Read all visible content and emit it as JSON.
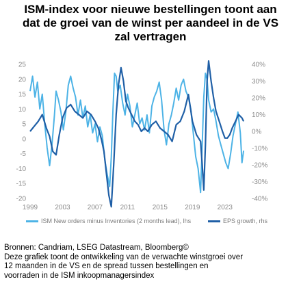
{
  "title_lines": [
    "ISM-index voor nieuwe bestellingen toont aan",
    "dat de groei van de winst per aandeel in de VS",
    "zal vertragen"
  ],
  "chart_data": {
    "type": "line",
    "x_tick_labels": [
      "1999",
      "2003",
      "2007",
      "2011",
      "2015",
      "2019",
      "2023"
    ],
    "xlim": [
      1999,
      2025.8
    ],
    "y_left": {
      "ticks": [
        25,
        20,
        15,
        10,
        5,
        0,
        -5,
        -10,
        -15,
        -20
      ],
      "tick_labels": [
        "25",
        "20",
        "15",
        "10",
        "5",
        "0",
        "-5",
        "-10",
        "-15",
        "-20"
      ],
      "ylim": [
        -20,
        25
      ]
    },
    "y_right": {
      "ticks": [
        40,
        30,
        20,
        10,
        0,
        -10,
        -20,
        -30,
        -40
      ],
      "tick_labels": [
        "40%",
        "30%",
        "20%",
        "10%",
        "0%",
        "-10%",
        "-20%",
        "-30%",
        "-40%"
      ],
      "ylim": [
        -40,
        40
      ]
    },
    "grid": false,
    "legend_position": "bottom",
    "series": [
      {
        "name": "ISM New orders minus Inventories (2 months lead), lhs",
        "axis": "left",
        "color": "#4db3e6",
        "x": [
          1999.0,
          1999.3,
          1999.6,
          1999.9,
          2000.2,
          2000.5,
          2000.8,
          2001.1,
          2001.4,
          2001.7,
          2002.0,
          2002.2,
          2002.5,
          2002.8,
          2003.1,
          2003.4,
          2003.7,
          2004.0,
          2004.3,
          2004.6,
          2004.9,
          2005.2,
          2005.5,
          2005.8,
          2006.1,
          2006.4,
          2006.7,
          2007.0,
          2007.3,
          2007.6,
          2007.9,
          2008.2,
          2008.5,
          2008.8,
          2009.0,
          2009.2,
          2009.4,
          2009.6,
          2009.8,
          2010.1,
          2010.4,
          2010.7,
          2011.0,
          2011.3,
          2011.6,
          2011.9,
          2012.2,
          2012.5,
          2012.8,
          2013.1,
          2013.4,
          2013.7,
          2014.0,
          2014.3,
          2014.6,
          2014.9,
          2015.2,
          2015.5,
          2015.8,
          2016.1,
          2016.4,
          2016.7,
          2017.0,
          2017.3,
          2017.6,
          2017.9,
          2018.2,
          2018.5,
          2018.8,
          2019.1,
          2019.4,
          2019.7,
          2020.0,
          2020.2,
          2020.4,
          2020.6,
          2020.8,
          2021.0,
          2021.3,
          2021.6,
          2021.9,
          2022.2,
          2022.5,
          2022.8,
          2023.1,
          2023.4,
          2023.7,
          2024.0,
          2024.3,
          2024.6,
          2024.9,
          2025.1,
          2025.3
        ],
        "y": [
          16,
          21,
          14,
          19,
          10,
          15,
          5,
          -3,
          -9,
          -2,
          8,
          16,
          13,
          9,
          3,
          9,
          18,
          21,
          17,
          14,
          8,
          13,
          7,
          11,
          4,
          8,
          2,
          5,
          -1,
          4,
          1,
          -7,
          -12,
          -16,
          -6,
          9,
          22,
          21,
          16,
          18,
          12,
          8,
          15,
          11,
          4,
          8,
          12,
          5,
          7,
          3,
          8,
          2,
          11,
          14,
          16,
          19,
          13,
          3,
          -2,
          5,
          8,
          12,
          17,
          13,
          18,
          20,
          16,
          14,
          10,
          2,
          -6,
          -10,
          -18,
          -2,
          14,
          22,
          20,
          13,
          9,
          10,
          6,
          1,
          -2,
          -5,
          -8,
          -10,
          -5,
          1,
          5,
          9,
          2,
          -8,
          -4
        ]
      },
      {
        "name": "EPS growth, rhs",
        "axis": "right",
        "color": "#1f5fa6",
        "x": [
          1999.0,
          1999.5,
          2000.0,
          2000.5,
          2001.0,
          2001.4,
          2001.8,
          2002.2,
          2002.6,
          2003.0,
          2003.5,
          2004.0,
          2004.5,
          2005.0,
          2005.5,
          2006.0,
          2006.5,
          2007.0,
          2007.4,
          2007.8,
          2008.1,
          2008.4,
          2008.7,
          2009.0,
          2009.3,
          2009.6,
          2009.9,
          2010.2,
          2010.5,
          2010.8,
          2011.1,
          2011.5,
          2011.9,
          2012.3,
          2012.7,
          2013.1,
          2013.5,
          2014.0,
          2014.5,
          2015.0,
          2015.5,
          2016.0,
          2016.5,
          2017.0,
          2017.5,
          2018.0,
          2018.5,
          2019.0,
          2019.5,
          2020.0,
          2020.2,
          2020.4,
          2020.6,
          2020.8,
          2021.0,
          2021.3,
          2021.6,
          2021.9,
          2022.3,
          2022.7,
          2023.0,
          2023.3,
          2023.6,
          2023.9,
          2024.3,
          2024.7,
          2025.1,
          2025.3
        ],
        "y": [
          0,
          3,
          6,
          10,
          2,
          -3,
          -12,
          -14,
          -2,
          8,
          14,
          16,
          12,
          10,
          8,
          12,
          10,
          6,
          2,
          -5,
          -12,
          -25,
          -38,
          -45,
          -20,
          10,
          28,
          38,
          30,
          18,
          14,
          10,
          6,
          4,
          0,
          2,
          0,
          4,
          6,
          2,
          0,
          -2,
          -6,
          4,
          6,
          12,
          22,
          6,
          -2,
          -6,
          -20,
          -35,
          -8,
          30,
          42,
          30,
          20,
          12,
          6,
          0,
          -4,
          -4,
          -2,
          2,
          6,
          10,
          8,
          6
        ]
      }
    ]
  },
  "legend": [
    {
      "label": "ISM New orders minus Inventories (2 months lead), lhs",
      "color": "#4db3e6"
    },
    {
      "label": "EPS growth, rhs",
      "color": "#1f5fa6"
    }
  ],
  "footnote_lines": [
    "Bronnen: Candriam, LSEG Datastream, Bloomberg©",
    "Deze grafiek toont de ontwikkeling van de verwachte winstgroei over",
    "12 maanden in de VS en de spread tussen bestellingen en",
    "voorraden in de ISM inkoopmanagersindex"
  ]
}
